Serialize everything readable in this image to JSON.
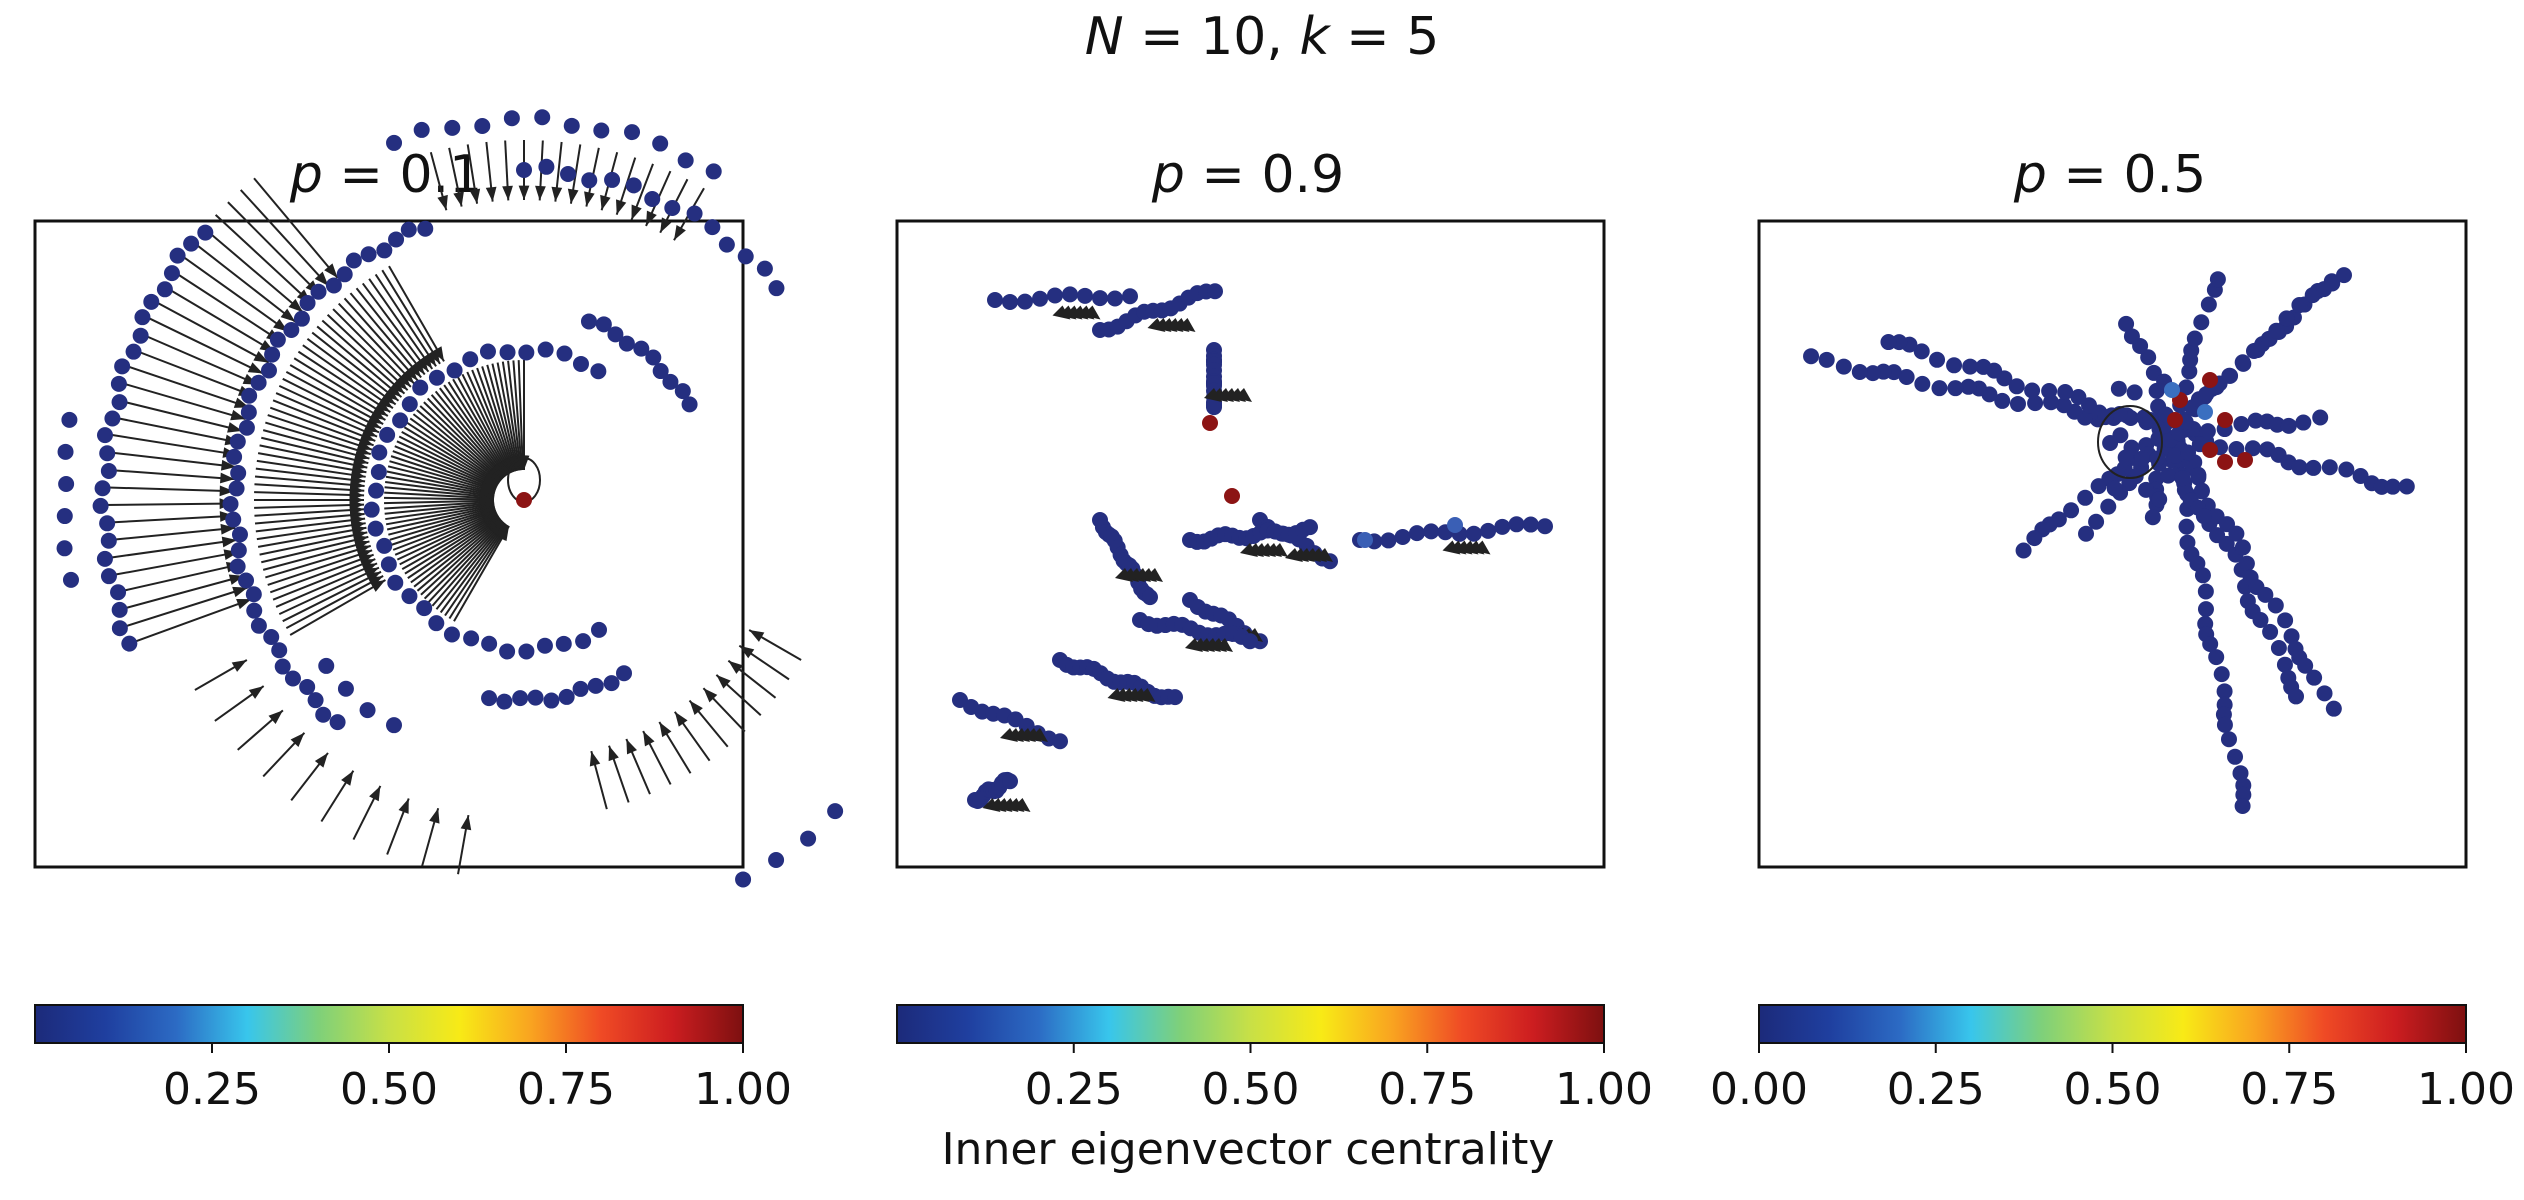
{
  "figure": {
    "suptitle": {
      "prefix_a": "N",
      "eq_a": " = 10, ",
      "prefix_b": "k",
      "eq_b": " = 5"
    },
    "colorbar_label": "Inner eigenvector centrality",
    "colormap": [
      "#1c2a7a",
      "#1f3f9f",
      "#2c6bc4",
      "#38c6ec",
      "#7ed07a",
      "#c8e046",
      "#f8ea16",
      "#f9a420",
      "#ef4a25",
      "#cc1d20",
      "#7d1010"
    ]
  },
  "chart_data": [
    {
      "type": "network",
      "title": "p = 0.1",
      "title_var": "p",
      "title_val": " = 0.1",
      "node_color": "#252f80",
      "hub_color": "#8c1414",
      "edge_color": "#222222",
      "colorbar": {
        "ticks": [
          "0.25",
          "0.50",
          "0.75",
          "1.00"
        ],
        "values": [
          0.25,
          0.5,
          0.75,
          1.0
        ],
        "range": [
          0.0,
          1.0
        ]
      }
    },
    {
      "type": "network",
      "title": "p = 0.9",
      "title_var": "p",
      "title_val": " = 0.9",
      "node_color": "#252f80",
      "hub_color": "#8c1414",
      "mid_color": "#3a5fb5",
      "edge_color": "#222222",
      "colorbar": {
        "ticks": [
          "0.25",
          "0.50",
          "0.75",
          "1.00"
        ],
        "values": [
          0.25,
          0.5,
          0.75,
          1.0
        ],
        "range": [
          0.0,
          1.0
        ]
      }
    },
    {
      "type": "network",
      "title": "p = 0.5",
      "title_var": "p",
      "title_val": " = 0.5",
      "node_color": "#252f80",
      "hub_color": "#8c1414",
      "mid_color": "#3a6fc0",
      "edge_color": "#222222",
      "colorbar": {
        "ticks": [
          "0.00",
          "0.25",
          "0.50",
          "0.75",
          "1.00"
        ],
        "values": [
          0.0,
          0.25,
          0.5,
          0.75,
          1.0
        ],
        "range": [
          0.0,
          1.0
        ]
      }
    }
  ]
}
